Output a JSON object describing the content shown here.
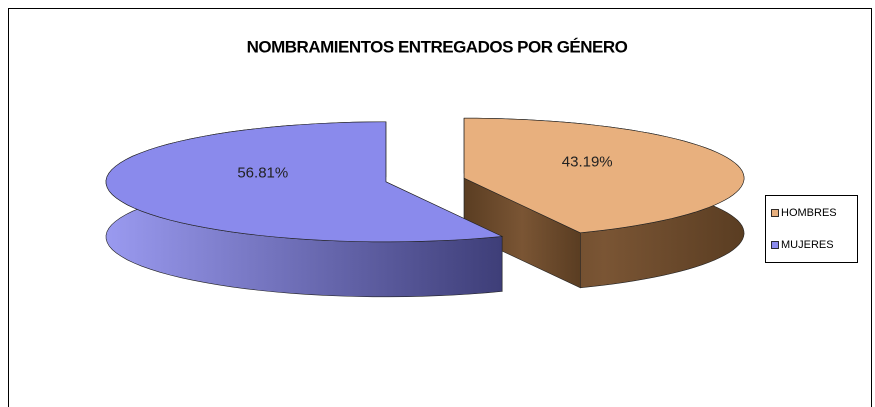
{
  "chart_data": {
    "type": "pie3d",
    "title": "NOMBRAMIENTOS ENTREGADOS POR GÉNERO",
    "categories": [
      "HOMBRES",
      "MUJERES"
    ],
    "values": [
      43.19,
      56.81
    ],
    "value_labels": [
      "43.19%",
      "56.81%"
    ],
    "colors": [
      "#e8b07e",
      "#8a8aec"
    ],
    "legend": "right"
  }
}
